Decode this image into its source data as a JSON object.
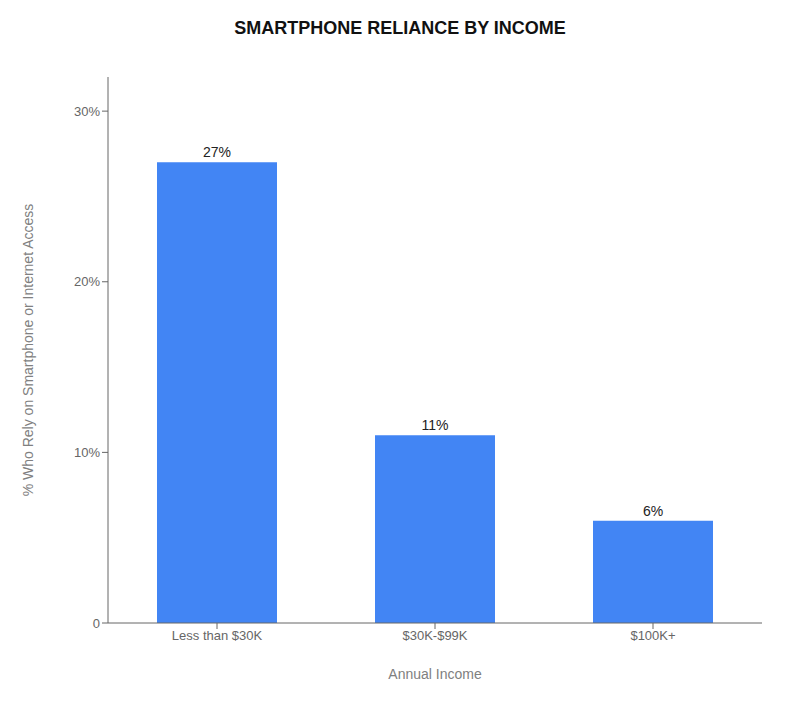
{
  "chart_data": {
    "type": "bar",
    "title": "SMARTPHONE RELIANCE BY INCOME",
    "categories": [
      "Less than $30K",
      "$30K-$99K",
      "$100K+"
    ],
    "values": [
      27,
      11,
      6
    ],
    "value_labels": [
      "27%",
      "11%",
      "6%"
    ],
    "data_labels": true,
    "color": "#4285F4",
    "xlabel": "Annual Income",
    "ylabel": "% Who Rely on Smartphone or Internet Access",
    "ylim": [
      0,
      32
    ],
    "yticks": [
      0,
      {
        "value": 10,
        "label": "10%"
      },
      {
        "value": 20,
        "label": "20%"
      },
      {
        "value": 30,
        "label": "30%"
      }
    ],
    "grid": false
  }
}
